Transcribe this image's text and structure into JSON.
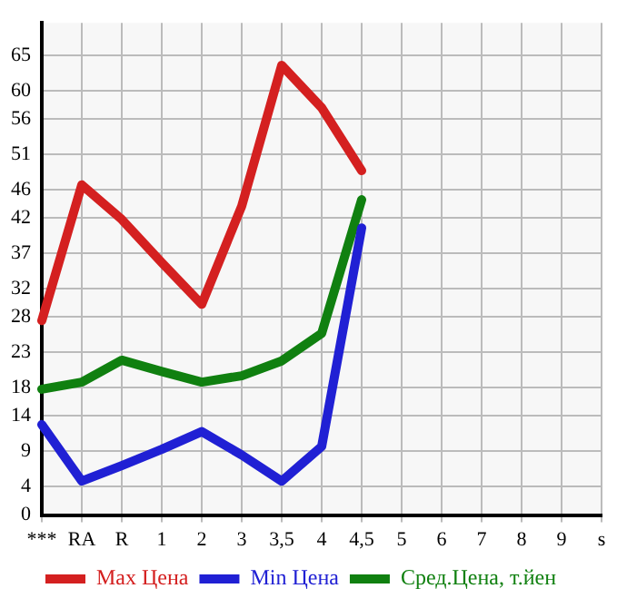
{
  "chart_data": {
    "type": "line",
    "categories": [
      "***",
      "RA",
      "R",
      "1",
      "2",
      "3",
      "3,5",
      "4",
      "4,5",
      "5",
      "6",
      "7",
      "8",
      "9",
      "s"
    ],
    "series": [
      {
        "name": "Max Цена",
        "color": "#d42020",
        "values": [
          27.5,
          46.7,
          41.8,
          35.7,
          29.8,
          43.7,
          63.6,
          57.6,
          48.7,
          null,
          null,
          null,
          null,
          null,
          null
        ]
      },
      {
        "name": "Min Цена",
        "color": "#2020d4",
        "values": [
          12.8,
          4.8,
          7.0,
          9.3,
          11.8,
          8.5,
          4.8,
          9.7,
          40.6,
          null,
          null,
          null,
          null,
          null,
          null
        ]
      },
      {
        "name": "Сред.Цена, т.йен",
        "color": "#108010",
        "values": [
          17.8,
          18.8,
          21.9,
          20.3,
          18.8,
          19.7,
          21.8,
          25.7,
          44.6,
          null,
          null,
          null,
          null,
          null,
          null
        ]
      }
    ],
    "ylim": [
      0,
      69.6
    ],
    "yticks": [
      0,
      4,
      9,
      14,
      18,
      23,
      28,
      32,
      37,
      42,
      46,
      51,
      56,
      60,
      65
    ],
    "grid": true,
    "legend": "bottom",
    "marker": "none",
    "line_style": "solid"
  }
}
